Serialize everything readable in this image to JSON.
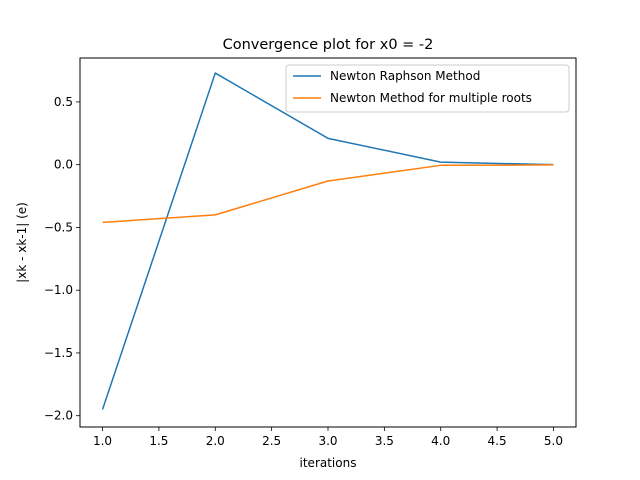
{
  "chart_data": {
    "type": "line",
    "title": "Convergence plot for x0 = -2",
    "xlabel": "iterations",
    "ylabel": "|xk - xk-1| (e)",
    "xlim": [
      0.8,
      5.2
    ],
    "ylim": [
      -2.09,
      0.85
    ],
    "xticks": [
      1.0,
      1.5,
      2.0,
      2.5,
      3.0,
      3.5,
      4.0,
      4.5,
      5.0
    ],
    "xtick_labels": [
      "1.0",
      "1.5",
      "2.0",
      "2.5",
      "3.0",
      "3.5",
      "4.0",
      "4.5",
      "5.0"
    ],
    "yticks": [
      -2.0,
      -1.5,
      -1.0,
      -0.5,
      0.0,
      0.5
    ],
    "ytick_labels": [
      "−2.0",
      "−1.5",
      "−1.0",
      "−0.5",
      "0.0",
      "0.5"
    ],
    "grid": false,
    "legend_position": "top-right",
    "x": [
      1,
      2,
      3,
      4,
      5
    ],
    "series": [
      {
        "name": "Newton Raphson Method",
        "color": "#1f77b4",
        "values": [
          -1.95,
          0.73,
          0.21,
          0.02,
          0.0
        ]
      },
      {
        "name": "Newton Method for multiple roots",
        "color": "#ff7f0e",
        "values": [
          -0.46,
          -0.4,
          -0.13,
          -0.005,
          -0.002
        ]
      }
    ]
  }
}
